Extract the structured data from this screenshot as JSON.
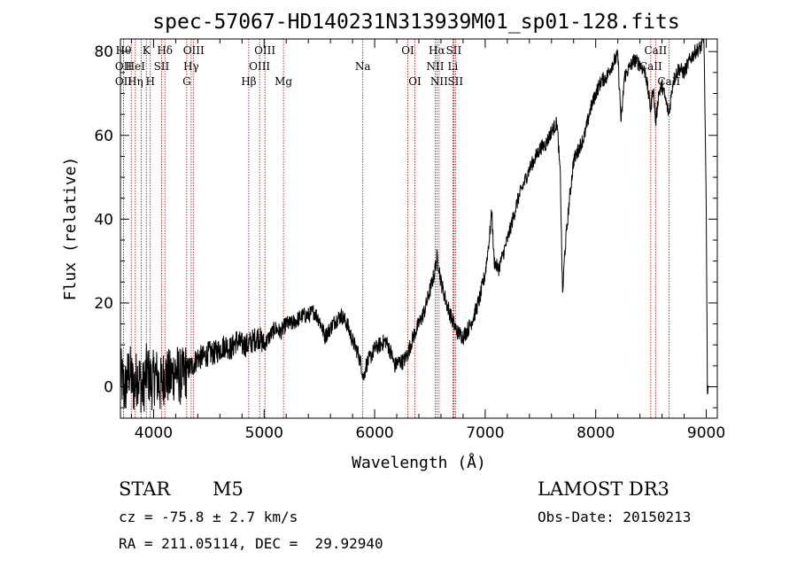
{
  "chart_data": {
    "type": "line",
    "title": "spec-57067-HD140231N313939M01_sp01-128.fits",
    "xlabel": "Wavelength (Å)",
    "ylabel": "Flux (relative)",
    "xlim": [
      3700,
      9100
    ],
    "ylim": [
      -7.5,
      83
    ],
    "x_ticks": [
      4000,
      5000,
      6000,
      7000,
      8000,
      9000
    ],
    "y_ticks": [
      0,
      20,
      40,
      60,
      80
    ],
    "grid": false,
    "series": [
      {
        "points": [
          [
            3700,
            3
          ],
          [
            3740,
            -1
          ],
          [
            3780,
            4
          ],
          [
            3820,
            0
          ],
          [
            3860,
            3
          ],
          [
            3900,
            -1
          ],
          [
            3940,
            4
          ],
          [
            3980,
            1
          ],
          [
            4020,
            3
          ],
          [
            4060,
            0
          ],
          [
            4100,
            3
          ],
          [
            4150,
            2
          ],
          [
            4200,
            4
          ],
          [
            4250,
            2
          ],
          [
            4300,
            4
          ],
          [
            4350,
            5
          ],
          [
            4400,
            7
          ],
          [
            4450,
            7
          ],
          [
            4500,
            8
          ],
          [
            4550,
            8
          ],
          [
            4600,
            9
          ],
          [
            4650,
            10
          ],
          [
            4700,
            9
          ],
          [
            4750,
            11
          ],
          [
            4800,
            10
          ],
          [
            4850,
            10
          ],
          [
            4900,
            11
          ],
          [
            4950,
            12
          ],
          [
            5000,
            10
          ],
          [
            5050,
            12
          ],
          [
            5100,
            14
          ],
          [
            5150,
            13
          ],
          [
            5200,
            15
          ],
          [
            5250,
            15
          ],
          [
            5300,
            16
          ],
          [
            5350,
            17
          ],
          [
            5400,
            17
          ],
          [
            5450,
            18
          ],
          [
            5500,
            16
          ],
          [
            5550,
            12
          ],
          [
            5600,
            14
          ],
          [
            5650,
            16
          ],
          [
            5700,
            17
          ],
          [
            5750,
            15
          ],
          [
            5800,
            11
          ],
          [
            5850,
            8
          ],
          [
            5880,
            5
          ],
          [
            5900,
            2
          ],
          [
            5920,
            5
          ],
          [
            5960,
            7
          ],
          [
            6000,
            9
          ],
          [
            6050,
            10
          ],
          [
            6100,
            11
          ],
          [
            6150,
            8
          ],
          [
            6180,
            5
          ],
          [
            6220,
            6
          ],
          [
            6260,
            6
          ],
          [
            6300,
            8
          ],
          [
            6350,
            12
          ],
          [
            6400,
            15
          ],
          [
            6450,
            18
          ],
          [
            6500,
            23
          ],
          [
            6540,
            27
          ],
          [
            6563,
            31
          ],
          [
            6580,
            29
          ],
          [
            6600,
            25
          ],
          [
            6650,
            20
          ],
          [
            6700,
            16
          ],
          [
            6750,
            13
          ],
          [
            6800,
            12
          ],
          [
            6850,
            14
          ],
          [
            6900,
            17
          ],
          [
            6950,
            21
          ],
          [
            7000,
            27
          ],
          [
            7040,
            36
          ],
          [
            7060,
            42
          ],
          [
            7080,
            30
          ],
          [
            7120,
            28
          ],
          [
            7200,
            35
          ],
          [
            7300,
            45
          ],
          [
            7400,
            52
          ],
          [
            7500,
            57
          ],
          [
            7550,
            58
          ],
          [
            7600,
            61
          ],
          [
            7650,
            63
          ],
          [
            7680,
            50
          ],
          [
            7700,
            22
          ],
          [
            7720,
            32
          ],
          [
            7760,
            44
          ],
          [
            7800,
            54
          ],
          [
            7850,
            57
          ],
          [
            7900,
            60
          ],
          [
            7950,
            66
          ],
          [
            8000,
            70
          ],
          [
            8050,
            73
          ],
          [
            8100,
            74
          ],
          [
            8150,
            77
          ],
          [
            8200,
            79
          ],
          [
            8230,
            63
          ],
          [
            8260,
            74
          ],
          [
            8300,
            76
          ],
          [
            8350,
            78
          ],
          [
            8400,
            77
          ],
          [
            8450,
            75
          ],
          [
            8498,
            66
          ],
          [
            8520,
            72
          ],
          [
            8542,
            63
          ],
          [
            8570,
            70
          ],
          [
            8600,
            72
          ],
          [
            8662,
            65
          ],
          [
            8700,
            73
          ],
          [
            8750,
            76
          ],
          [
            8800,
            75
          ],
          [
            8850,
            78
          ],
          [
            8900,
            80
          ],
          [
            8950,
            81
          ],
          [
            8980,
            83
          ],
          [
            9000,
            42
          ],
          [
            9010,
            0
          ],
          [
            9020,
            0
          ]
        ]
      }
    ],
    "lines": [
      {
        "w": 3728,
        "labels": [
          "Hθ",
          "OII",
          "OII"
        ]
      },
      {
        "w": 3798,
        "labels": [
          "",
          "",
          ""
        ]
      },
      {
        "w": 3835,
        "labels": [
          "",
          "HeI",
          "Hη"
        ]
      },
      {
        "w": 3889,
        "labels": [
          "",
          "",
          ""
        ]
      },
      {
        "w": 3934,
        "labels": [
          "K",
          "",
          ""
        ]
      },
      {
        "w": 3970,
        "labels": [
          "",
          "",
          "H"
        ]
      },
      {
        "w": 4072,
        "labels": [
          "",
          "SII",
          ""
        ]
      },
      {
        "w": 4102,
        "labels": [
          "Hδ",
          "",
          ""
        ]
      },
      {
        "w": 4300,
        "labels": [
          "",
          "",
          "G"
        ]
      },
      {
        "w": 4340,
        "labels": [
          "",
          "Hγ",
          ""
        ]
      },
      {
        "w": 4363,
        "labels": [
          "OIII",
          "",
          ""
        ]
      },
      {
        "w": 4861,
        "labels": [
          "",
          "",
          "Hβ"
        ]
      },
      {
        "w": 4959,
        "labels": [
          "",
          "OIII",
          ""
        ]
      },
      {
        "w": 5007,
        "labels": [
          "OIII",
          "",
          ""
        ]
      },
      {
        "w": 5175,
        "labels": [
          "",
          "",
          "Mg"
        ]
      },
      {
        "w": 5893,
        "labels": [
          "",
          "Na",
          ""
        ]
      },
      {
        "w": 6300,
        "labels": [
          "OI",
          "",
          ""
        ]
      },
      {
        "w": 6364,
        "labels": [
          "",
          "",
          "OI"
        ]
      },
      {
        "w": 6548,
        "labels": [
          "",
          "NII",
          ""
        ]
      },
      {
        "w": 6563,
        "labels": [
          "Hα",
          "",
          ""
        ]
      },
      {
        "w": 6583,
        "labels": [
          "",
          "",
          "NII"
        ]
      },
      {
        "w": 6708,
        "labels": [
          "",
          "Li",
          ""
        ]
      },
      {
        "w": 6716,
        "labels": [
          "SII",
          "",
          ""
        ]
      },
      {
        "w": 6731,
        "labels": [
          "",
          "",
          "SII"
        ]
      },
      {
        "w": 8498,
        "labels": [
          "",
          "CaII",
          ""
        ]
      },
      {
        "w": 8542,
        "labels": [
          "CaII",
          "",
          ""
        ]
      },
      {
        "w": 8662,
        "labels": [
          "",
          "",
          "CaII"
        ]
      }
    ],
    "line_color": "#aa0000",
    "spectrum_color": "#000000"
  },
  "info": {
    "object_type": "STAR",
    "subclass": "M5",
    "survey": "LAMOST DR3",
    "cz": "cz = -75.8 ± 2.7 km/s",
    "obs_date": "Obs-Date: 20150213",
    "coords": "RA = 211.05114, DEC =  29.92940"
  }
}
